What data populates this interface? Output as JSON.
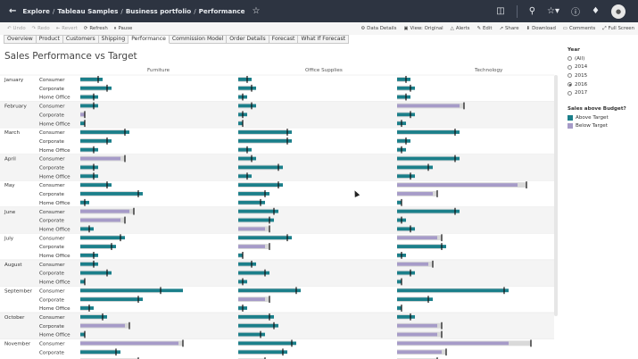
{
  "topbar": {
    "back_icon": "back-arrow-icon",
    "crumbs": [
      "Explore",
      "Tableau Samples",
      "Business portfolio",
      "Performance"
    ],
    "separator": "/",
    "favorite_icon": "star-icon",
    "right_icons": [
      "database-icon",
      "search-icon",
      "star-dropdown-icon",
      "help-icon",
      "bell-icon",
      "user-avatar"
    ]
  },
  "toolbar": {
    "left": [
      {
        "label": "Undo",
        "icon": "undo-icon",
        "enabled": false
      },
      {
        "label": "Redo",
        "icon": "redo-icon",
        "enabled": false
      },
      {
        "label": "Revert",
        "icon": "revert-icon",
        "enabled": false
      },
      {
        "label": "Refresh",
        "icon": "refresh-icon",
        "enabled": true
      },
      {
        "label": "Pause",
        "icon": "pause-icon",
        "enabled": true
      }
    ],
    "right": [
      {
        "label": "Data Details",
        "icon": "data-details-icon"
      },
      {
        "label": "View: Original",
        "icon": "view-icon"
      },
      {
        "label": "Alerts",
        "icon": "alerts-icon"
      },
      {
        "label": "Edit",
        "icon": "edit-icon"
      },
      {
        "label": "Share",
        "icon": "share-icon"
      },
      {
        "label": "Download",
        "icon": "download-icon"
      },
      {
        "label": "Comments",
        "icon": "comments-icon"
      },
      {
        "label": "Full Screen",
        "icon": "full-screen-icon"
      }
    ]
  },
  "tabs": [
    {
      "label": "Overview",
      "active": false
    },
    {
      "label": "Product",
      "active": false
    },
    {
      "label": "Customers",
      "active": false
    },
    {
      "label": "Shipping",
      "active": false
    },
    {
      "label": "Performance",
      "active": true
    },
    {
      "label": "Commission Model",
      "active": false
    },
    {
      "label": "Order Details",
      "active": false
    },
    {
      "label": "Forecast",
      "active": false
    },
    {
      "label": "What If Forecast",
      "active": false
    }
  ],
  "sheet_title": "Sales Performance vs Target",
  "legend": {
    "year_title": "Year",
    "year_options": [
      "(All)",
      "2014",
      "2015",
      "2016",
      "2017"
    ],
    "year_selected": "2016",
    "budget_title": "Sales above Budget?",
    "budget_items": [
      {
        "label": "Above Target",
        "color": "#1b7f8a"
      },
      {
        "label": "Below Target",
        "color": "#a69bc8"
      }
    ]
  },
  "chart_data": {
    "type": "bar",
    "categories": [
      "Furniture",
      "Office Supplies",
      "Technology"
    ],
    "months": [
      "January",
      "February",
      "March",
      "April",
      "May",
      "June",
      "July",
      "August",
      "September",
      "October",
      "November"
    ],
    "segments": [
      "Consumer",
      "Corporate",
      "Home Office"
    ],
    "colors": {
      "above": "#1b7f8a",
      "below": "#a69bc8",
      "target": "#d9d9d9",
      "marker": "#111111"
    },
    "values": {
      "Furniture": [
        [
          [
            5,
            4,
            1
          ],
          [
            7,
            6,
            1
          ],
          [
            4,
            3,
            1
          ]
        ],
        [
          [
            4,
            3,
            1
          ],
          [
            1,
            1,
            0
          ],
          [
            1,
            1,
            1
          ]
        ],
        [
          [
            11,
            10,
            1
          ],
          [
            7,
            6,
            1
          ],
          [
            4,
            3,
            1
          ]
        ],
        [
          [
            9,
            10,
            0
          ],
          [
            4,
            3,
            1
          ],
          [
            4,
            3,
            1
          ]
        ],
        [
          [
            7,
            6,
            1
          ],
          [
            14,
            13,
            1
          ],
          [
            2,
            1,
            1
          ]
        ],
        [
          [
            11,
            12,
            0
          ],
          [
            9,
            10,
            0
          ],
          [
            3,
            2,
            1
          ]
        ],
        [
          [
            10,
            9,
            1
          ],
          [
            8,
            7,
            1
          ],
          [
            4,
            3,
            1
          ]
        ],
        [
          [
            4,
            3,
            1
          ],
          [
            7,
            6,
            1
          ],
          [
            1,
            1,
            1
          ]
        ],
        [
          [
            23,
            18,
            1
          ],
          [
            14,
            13,
            1
          ],
          [
            3,
            2,
            1
          ]
        ],
        [
          [
            6,
            5,
            1
          ],
          [
            10,
            11,
            0
          ],
          [
            1,
            1,
            1
          ]
        ],
        [
          [
            22,
            23,
            0
          ],
          [
            9,
            8,
            1
          ],
          [
            14,
            13,
            1
          ]
        ]
      ],
      "Office Supplies": [
        [
          [
            3,
            2,
            1
          ],
          [
            4,
            3,
            1
          ],
          [
            2,
            1,
            1
          ]
        ],
        [
          [
            4,
            3,
            1
          ],
          [
            2,
            1,
            1
          ],
          [
            1,
            1,
            1
          ]
        ],
        [
          [
            12,
            11,
            1
          ],
          [
            12,
            11,
            1
          ],
          [
            3,
            2,
            1
          ]
        ],
        [
          [
            4,
            3,
            1
          ],
          [
            10,
            9,
            1
          ],
          [
            3,
            2,
            1
          ]
        ],
        [
          [
            10,
            9,
            1
          ],
          [
            7,
            6,
            1
          ],
          [
            6,
            5,
            1
          ]
        ],
        [
          [
            9,
            8,
            1
          ],
          [
            8,
            7,
            1
          ],
          [
            6,
            7,
            0
          ]
        ],
        [
          [
            12,
            11,
            1
          ],
          [
            6,
            7,
            0
          ],
          [
            1,
            1,
            1
          ]
        ],
        [
          [
            4,
            3,
            1
          ],
          [
            7,
            6,
            1
          ],
          [
            2,
            1,
            1
          ]
        ],
        [
          [
            14,
            13,
            1
          ],
          [
            6,
            7,
            0
          ],
          [
            2,
            1,
            1
          ]
        ],
        [
          [
            8,
            7,
            1
          ],
          [
            9,
            8,
            1
          ],
          [
            6,
            5,
            1
          ]
        ],
        [
          [
            13,
            12,
            1
          ],
          [
            11,
            10,
            1
          ],
          [
            7,
            6,
            1
          ]
        ]
      ],
      "Technology": [
        [
          [
            3,
            2,
            1
          ],
          [
            4,
            3,
            1
          ],
          [
            3,
            2,
            1
          ]
        ],
        [
          [
            14,
            15,
            0
          ],
          [
            4,
            3,
            1
          ],
          [
            2,
            1,
            1
          ]
        ],
        [
          [
            14,
            13,
            1
          ],
          [
            3,
            2,
            1
          ],
          [
            2,
            1,
            1
          ]
        ],
        [
          [
            14,
            13,
            1
          ],
          [
            8,
            7,
            1
          ],
          [
            4,
            3,
            1
          ]
        ],
        [
          [
            27,
            29,
            0
          ],
          [
            8,
            9,
            0
          ],
          [
            1,
            1,
            1
          ]
        ],
        [
          [
            14,
            13,
            1
          ],
          [
            2,
            1,
            1
          ],
          [
            4,
            3,
            1
          ]
        ],
        [
          [
            9,
            10,
            0
          ],
          [
            11,
            10,
            1
          ],
          [
            2,
            1,
            1
          ]
        ],
        [
          [
            7,
            8,
            0
          ],
          [
            4,
            3,
            1
          ],
          [
            1,
            1,
            1
          ]
        ],
        [
          [
            25,
            24,
            1
          ],
          [
            8,
            7,
            1
          ],
          [
            1,
            1,
            1
          ]
        ],
        [
          [
            4,
            3,
            1
          ],
          [
            9,
            10,
            0
          ],
          [
            9,
            10,
            0
          ]
        ],
        [
          [
            25,
            30,
            0
          ],
          [
            10,
            11,
            0
          ],
          [
            10,
            9,
            1
          ]
        ]
      ]
    },
    "value_note": "each triple is [sales, target, above_target]; relative units"
  }
}
